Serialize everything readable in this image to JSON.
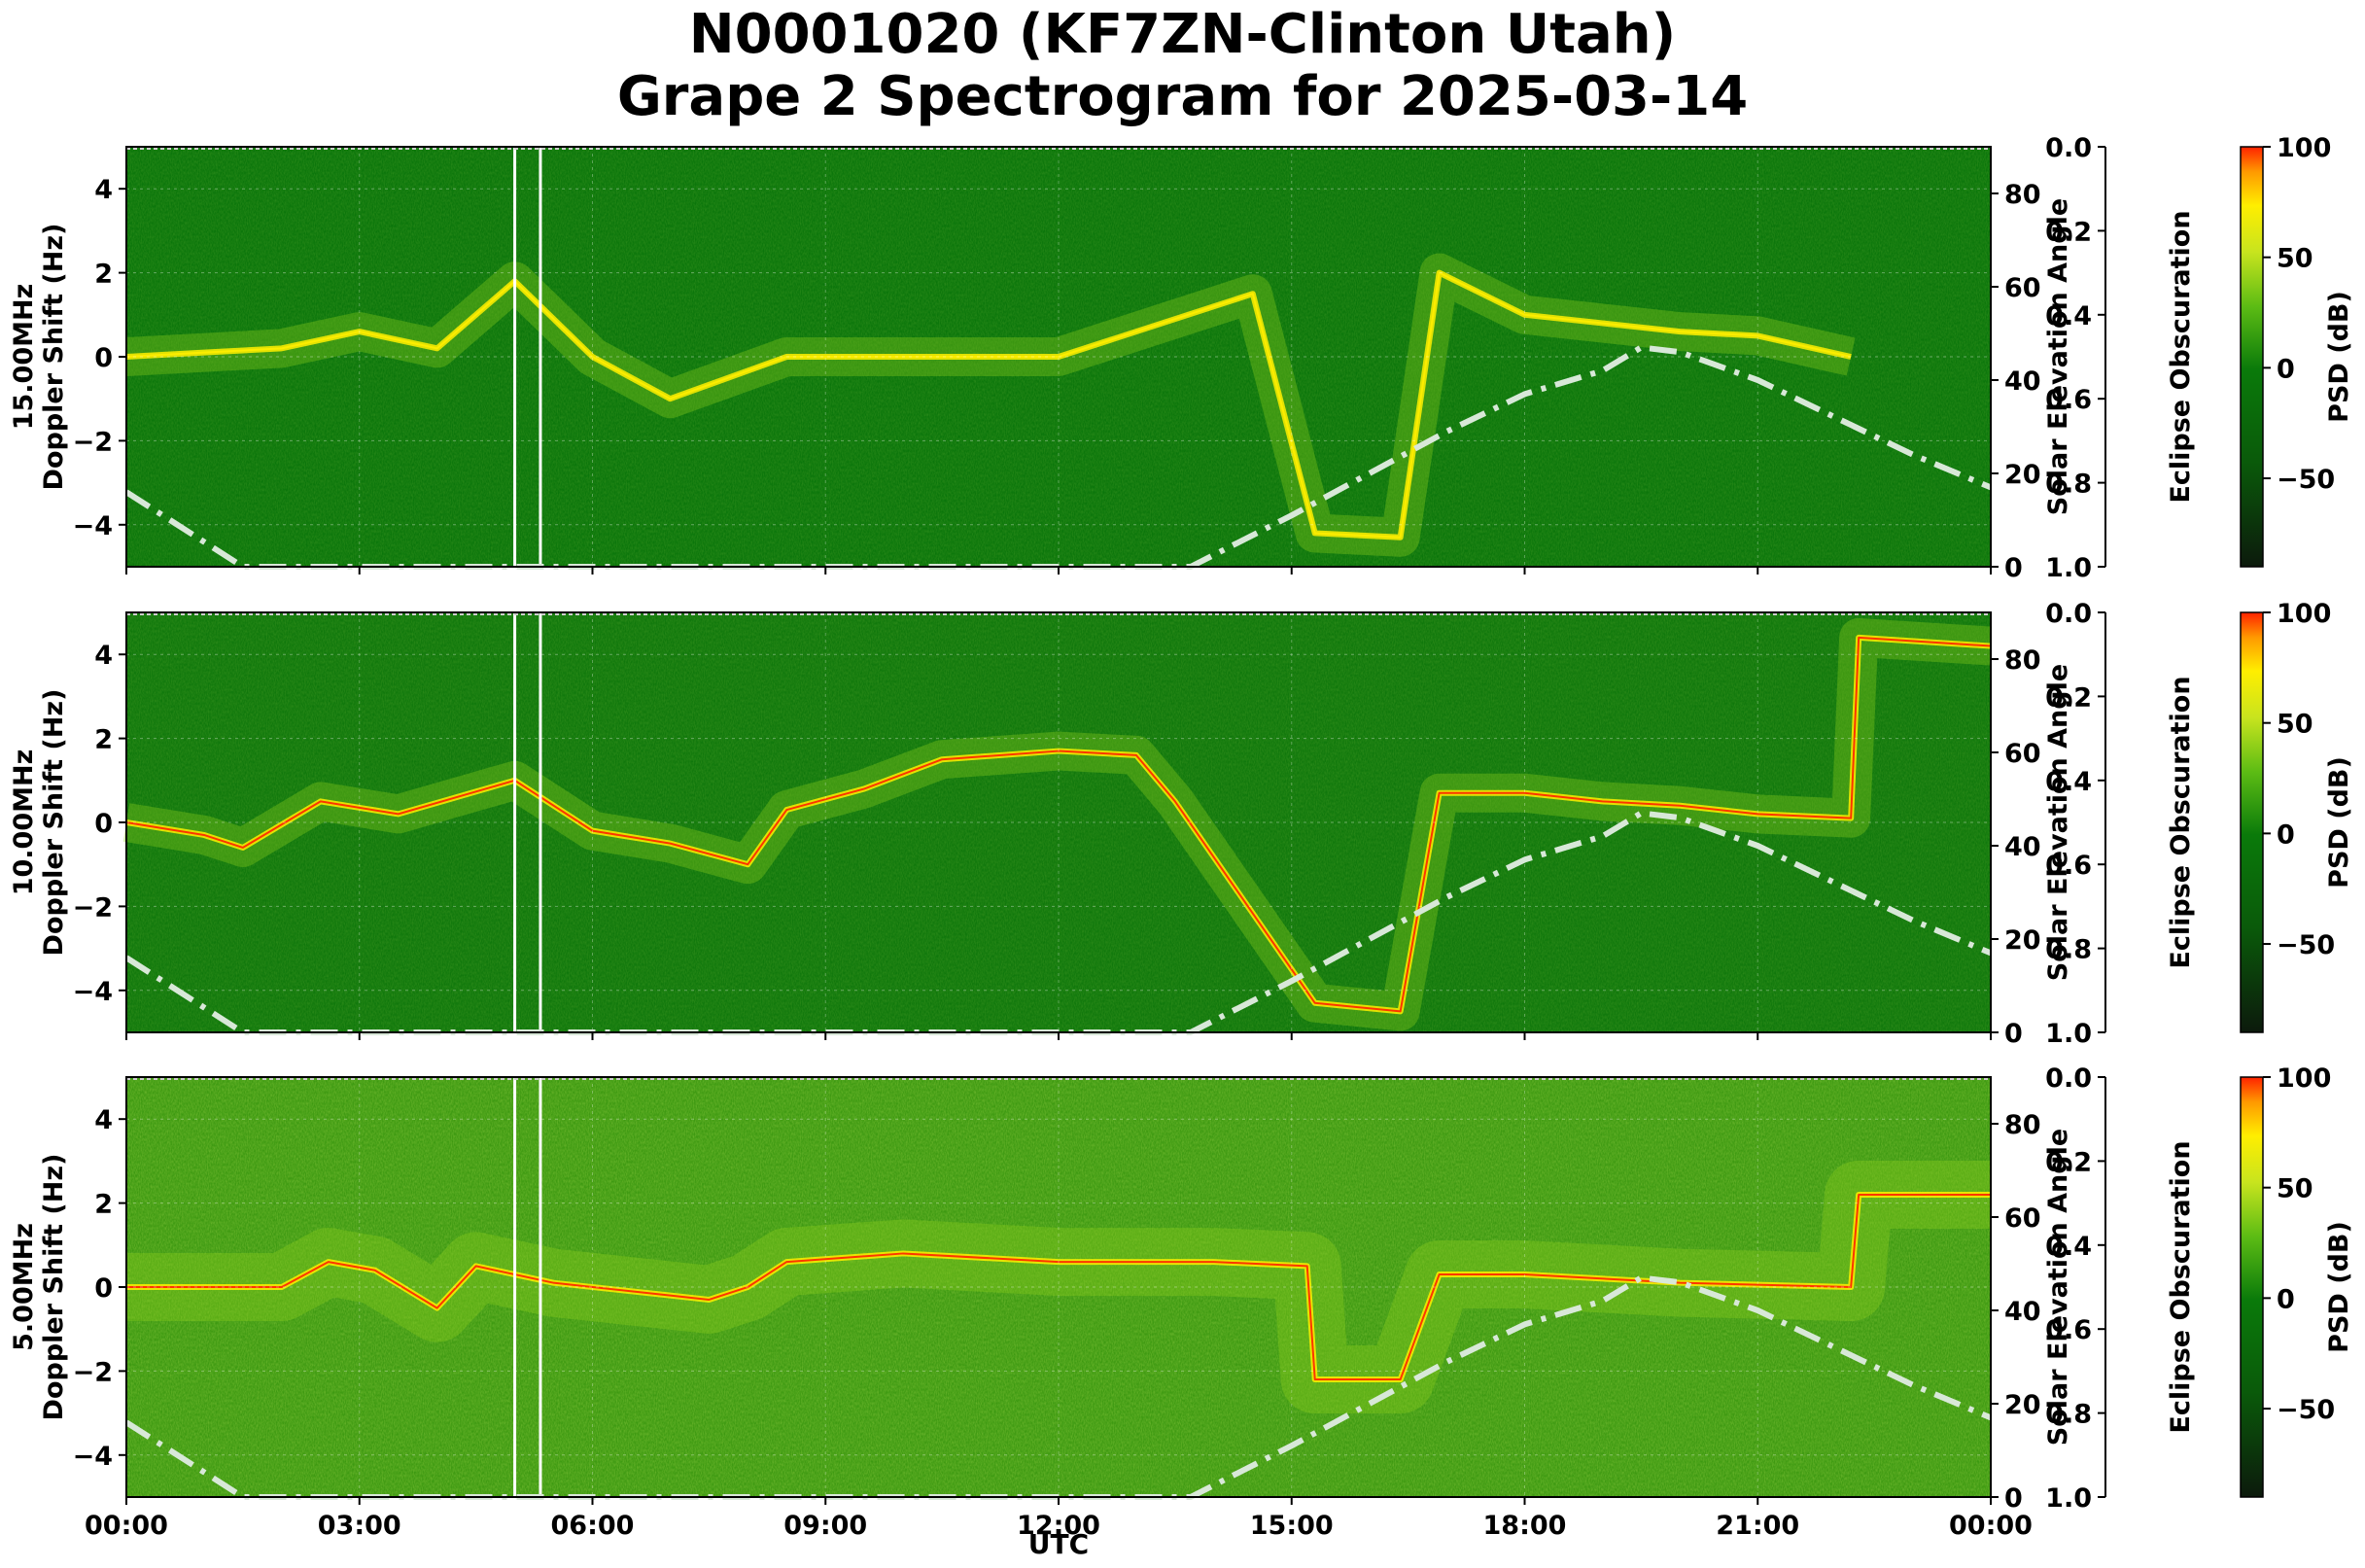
{
  "figure": {
    "title_line1": "N0001020 (KF7ZN-Clinton Utah)",
    "title_line2": "Grape 2 Spectrogram for 2025-03-14",
    "xlabel": "UTC"
  },
  "colors": {
    "background_low": "#0a7a0a",
    "mid": "#8ed21e",
    "high": "#ffee00",
    "peak": "#ff2200",
    "sun_curve": "#d8e8d8"
  },
  "chart_data": [
    {
      "type": "heatmap",
      "panel": "15.00MHz",
      "ylabel_line1": "15.00MHz",
      "ylabel_line2": "Doppler Shift (Hz)",
      "y2label": "Solar Elevation Angle",
      "y3label": "Eclipse Obscuration",
      "cbar_label": "PSD (dB)",
      "x_ticks": [
        "00:00",
        "03:00",
        "06:00",
        "09:00",
        "12:00",
        "15:00",
        "18:00",
        "21:00",
        "00:00"
      ],
      "ylim": [
        -5,
        5
      ],
      "y_ticks": [
        4,
        2,
        0,
        -2,
        -4
      ],
      "y2lim": [
        0,
        90
      ],
      "y2_ticks": [
        0,
        20,
        40,
        60,
        80
      ],
      "y3lim": [
        1.0,
        0.0
      ],
      "y3_ticks": [
        "0.0",
        "0.2",
        "0.4",
        "0.6",
        "0.8",
        "1.0"
      ],
      "clim": [
        -90,
        100
      ],
      "cbar_ticks": [
        100,
        50,
        0,
        -50
      ],
      "gaps_utc_h": [
        5.0,
        5.33
      ],
      "doppler_trace": [
        [
          0,
          0
        ],
        [
          1,
          0.1
        ],
        [
          2,
          0.2
        ],
        [
          3,
          0.6
        ],
        [
          4,
          0.2
        ],
        [
          5,
          1.8
        ],
        [
          6,
          0
        ],
        [
          7,
          -1.0
        ],
        [
          8.5,
          0
        ],
        [
          9,
          0
        ],
        [
          12,
          0
        ],
        [
          14.5,
          1.5
        ],
        [
          15.3,
          -4.2
        ],
        [
          16.4,
          -4.3
        ],
        [
          16.9,
          2.0
        ],
        [
          18,
          1.0
        ],
        [
          19,
          0.8
        ],
        [
          20,
          0.6
        ],
        [
          21,
          0.5
        ],
        [
          22.2,
          0.0
        ]
      ],
      "solar_elevation_deg": [
        [
          0,
          16
        ],
        [
          1.5,
          0
        ],
        [
          13.7,
          0
        ],
        [
          15,
          11
        ],
        [
          16,
          20
        ],
        [
          17,
          29
        ],
        [
          18,
          37
        ],
        [
          19,
          42
        ],
        [
          19.5,
          47
        ],
        [
          20,
          46
        ],
        [
          21,
          40
        ],
        [
          22,
          32
        ],
        [
          23,
          24
        ],
        [
          24,
          17
        ]
      ]
    },
    {
      "type": "heatmap",
      "panel": "10.00MHz",
      "ylabel_line1": "10.00MHz",
      "ylabel_line2": "Doppler Shift (Hz)",
      "y2label": "Solar Elevation Angle",
      "y3label": "Eclipse Obscuration",
      "cbar_label": "PSD (dB)",
      "x_ticks": [
        "00:00",
        "03:00",
        "06:00",
        "09:00",
        "12:00",
        "15:00",
        "18:00",
        "21:00",
        "00:00"
      ],
      "ylim": [
        -5,
        5
      ],
      "y_ticks": [
        4,
        2,
        0,
        -2,
        -4
      ],
      "y2lim": [
        0,
        90
      ],
      "y2_ticks": [
        0,
        20,
        40,
        60,
        80
      ],
      "y3lim": [
        1.0,
        0.0
      ],
      "y3_ticks": [
        "0.0",
        "0.2",
        "0.4",
        "0.6",
        "0.8",
        "1.0"
      ],
      "clim": [
        -90,
        100
      ],
      "cbar_ticks": [
        100,
        50,
        0,
        -50
      ],
      "gaps_utc_h": [
        5.0,
        5.33
      ],
      "doppler_trace": [
        [
          0,
          0
        ],
        [
          1,
          -0.3
        ],
        [
          1.5,
          -0.6
        ],
        [
          2.5,
          0.5
        ],
        [
          3.5,
          0.2
        ],
        [
          5,
          1.0
        ],
        [
          6,
          -0.2
        ],
        [
          7,
          -0.5
        ],
        [
          8,
          -1.0
        ],
        [
          8.5,
          0.3
        ],
        [
          9.5,
          0.8
        ],
        [
          10.5,
          1.5
        ],
        [
          12,
          1.7
        ],
        [
          13,
          1.6
        ],
        [
          13.5,
          0.5
        ],
        [
          15.3,
          -4.3
        ],
        [
          16.4,
          -4.5
        ],
        [
          16.9,
          0.7
        ],
        [
          18,
          0.7
        ],
        [
          19,
          0.5
        ],
        [
          20,
          0.4
        ],
        [
          21,
          0.2
        ],
        [
          22.2,
          0.1
        ],
        [
          22.3,
          4.4
        ],
        [
          24,
          4.2
        ]
      ],
      "solar_elevation_deg": [
        [
          0,
          16
        ],
        [
          1.5,
          0
        ],
        [
          13.7,
          0
        ],
        [
          15,
          11
        ],
        [
          16,
          20
        ],
        [
          17,
          29
        ],
        [
          18,
          37
        ],
        [
          19,
          42
        ],
        [
          19.5,
          47
        ],
        [
          20,
          46
        ],
        [
          21,
          40
        ],
        [
          22,
          32
        ],
        [
          23,
          24
        ],
        [
          24,
          17
        ]
      ]
    },
    {
      "type": "heatmap",
      "panel": "5.00MHz",
      "ylabel_line1": "5.00MHz",
      "ylabel_line2": "Doppler Shift (Hz)",
      "y2label": "Solar Elevation Angle",
      "y3label": "Eclipse Obscuration",
      "cbar_label": "PSD (dB)",
      "x_ticks": [
        "00:00",
        "03:00",
        "06:00",
        "09:00",
        "12:00",
        "15:00",
        "18:00",
        "21:00",
        "00:00"
      ],
      "ylim": [
        -5,
        5
      ],
      "y_ticks": [
        4,
        2,
        0,
        -2,
        -4
      ],
      "y2lim": [
        0,
        90
      ],
      "y2_ticks": [
        0,
        20,
        40,
        60,
        80
      ],
      "y3lim": [
        1.0,
        0.0
      ],
      "y3_ticks": [
        "0.0",
        "0.2",
        "0.4",
        "0.6",
        "0.8",
        "1.0"
      ],
      "clim": [
        -90,
        100
      ],
      "cbar_ticks": [
        100,
        50,
        0,
        -50
      ],
      "gaps_utc_h": [
        5.0,
        5.33
      ],
      "doppler_trace": [
        [
          0,
          0
        ],
        [
          1,
          0
        ],
        [
          2,
          0
        ],
        [
          2.6,
          0.6
        ],
        [
          3.2,
          0.4
        ],
        [
          4,
          -0.5
        ],
        [
          4.5,
          0.5
        ],
        [
          5.5,
          0.1
        ],
        [
          7,
          -0.2
        ],
        [
          7.5,
          -0.3
        ],
        [
          8,
          0
        ],
        [
          8.5,
          0.6
        ],
        [
          10,
          0.8
        ],
        [
          12,
          0.6
        ],
        [
          14,
          0.6
        ],
        [
          15.2,
          0.5
        ],
        [
          15.3,
          -2.2
        ],
        [
          16.4,
          -2.2
        ],
        [
          16.9,
          0.3
        ],
        [
          18,
          0.3
        ],
        [
          20,
          0.1
        ],
        [
          22.2,
          0
        ],
        [
          22.3,
          2.2
        ],
        [
          24,
          2.2
        ]
      ],
      "solar_elevation_deg": [
        [
          0,
          16
        ],
        [
          1.5,
          0
        ],
        [
          13.7,
          0
        ],
        [
          15,
          11
        ],
        [
          16,
          20
        ],
        [
          17,
          29
        ],
        [
          18,
          37
        ],
        [
          19,
          42
        ],
        [
          19.5,
          47
        ],
        [
          20,
          46
        ],
        [
          21,
          40
        ],
        [
          22,
          32
        ],
        [
          23,
          24
        ],
        [
          24,
          17
        ]
      ]
    }
  ]
}
